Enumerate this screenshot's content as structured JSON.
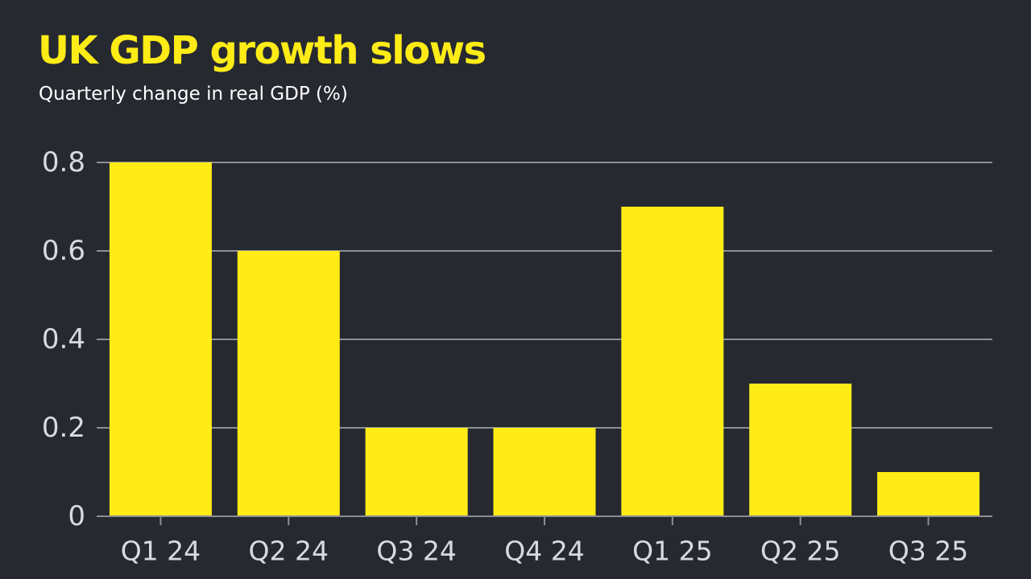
{
  "colors": {
    "background": "#272931",
    "bar": "#ffec17",
    "title": "#ffec17",
    "subtitle": "#ffffff",
    "gridline": "#8c8f96",
    "tick_label": "#d9dade"
  },
  "chart_data": {
    "type": "bar",
    "title": "UK GDP growth slows",
    "subtitle": "Quarterly change in real GDP (%)",
    "categories": [
      "Q1 24",
      "Q2 24",
      "Q3 24",
      "Q4 24",
      "Q1 25",
      "Q2 25",
      "Q3 25"
    ],
    "values": [
      0.8,
      0.6,
      0.2,
      0.2,
      0.7,
      0.3,
      0.1
    ],
    "ylim": [
      0,
      0.8
    ],
    "yticks": [
      0,
      0.2,
      0.4,
      0.6,
      0.8
    ],
    "ytick_labels": [
      "0",
      "0.2",
      "0.4",
      "0.6",
      "0.8"
    ],
    "grid": true,
    "legend": "none"
  }
}
